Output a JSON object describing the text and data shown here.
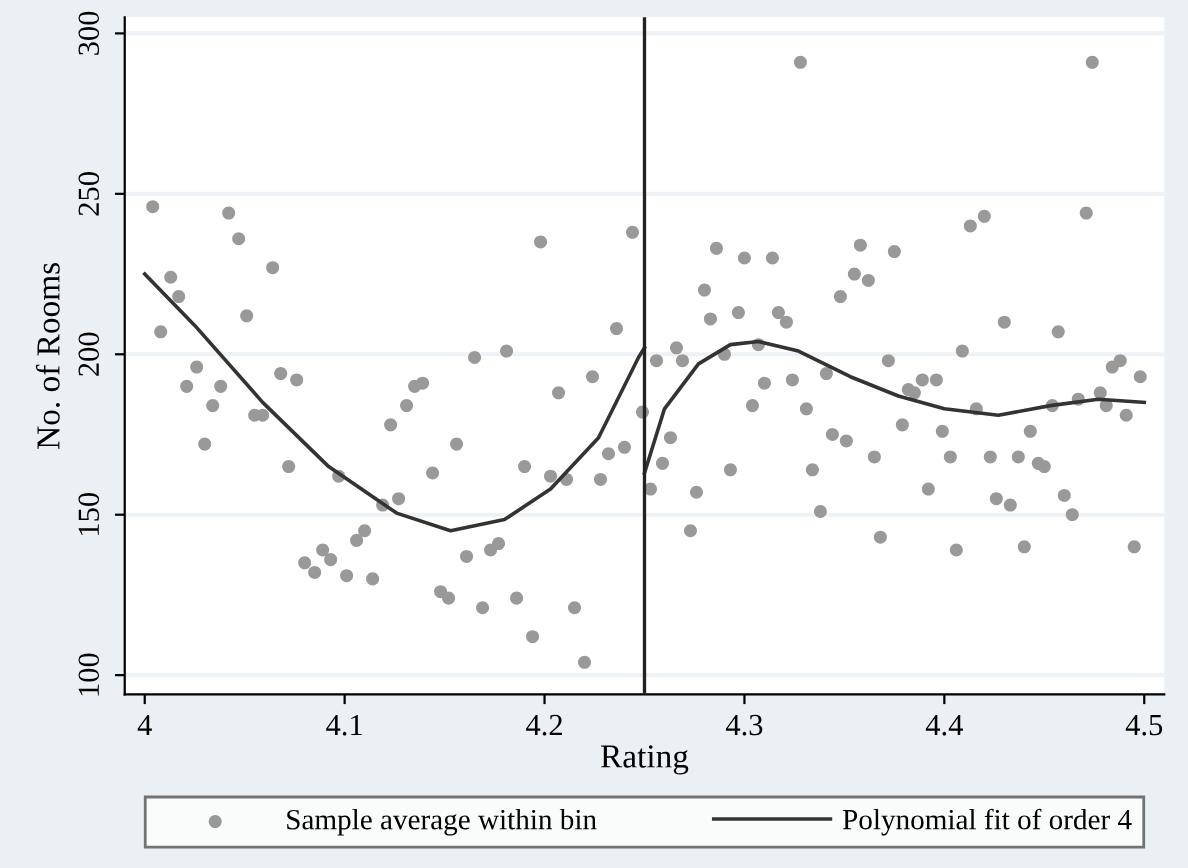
{
  "chart_data": {
    "type": "scatter",
    "xlabel": "Rating",
    "ylabel": "No. of Rooms",
    "xlim": [
      3.99,
      4.51
    ],
    "ylim": [
      94,
      305
    ],
    "xticks": [
      4,
      4.1,
      4.2,
      4.3,
      4.4,
      4.5
    ],
    "yticks": [
      100,
      150,
      200,
      250,
      300
    ],
    "grid": "y",
    "legend": "bottom",
    "marker": "circle",
    "ref_lines": [
      {
        "axis": "x",
        "value": 4.25,
        "label": null,
        "color": "#222222",
        "line_style": "solid"
      }
    ],
    "series": [
      {
        "name": "Sample average within bin",
        "color": "#999999",
        "x": [
          4.004,
          4.008,
          4.013,
          4.017,
          4.021,
          4.026,
          4.03,
          4.034,
          4.038,
          4.042,
          4.047,
          4.051,
          4.055,
          4.059,
          4.064,
          4.068,
          4.072,
          4.076,
          4.08,
          4.085,
          4.089,
          4.093,
          4.097,
          4.101,
          4.106,
          4.11,
          4.114,
          4.119,
          4.123,
          4.127,
          4.131,
          4.135,
          4.139,
          4.144,
          4.148,
          4.152,
          4.156,
          4.161,
          4.165,
          4.169,
          4.173,
          4.177,
          4.181,
          4.186,
          4.19,
          4.194,
          4.198,
          4.203,
          4.207,
          4.211,
          4.215,
          4.22,
          4.224,
          4.228,
          4.232,
          4.236,
          4.24,
          4.244,
          4.249,
          4.253,
          4.256,
          4.259,
          4.263,
          4.266,
          4.269,
          4.273,
          4.276,
          4.28,
          4.283,
          4.286,
          4.29,
          4.293,
          4.297,
          4.3,
          4.304,
          4.307,
          4.31,
          4.314,
          4.317,
          4.321,
          4.324,
          4.328,
          4.331,
          4.334,
          4.338,
          4.341,
          4.344,
          4.348,
          4.351,
          4.355,
          4.358,
          4.362,
          4.365,
          4.368,
          4.372,
          4.375,
          4.379,
          4.382,
          4.385,
          4.389,
          4.392,
          4.396,
          4.399,
          4.403,
          4.406,
          4.409,
          4.413,
          4.416,
          4.42,
          4.423,
          4.426,
          4.43,
          4.433,
          4.437,
          4.44,
          4.443,
          4.447,
          4.45,
          4.454,
          4.457,
          4.46,
          4.464,
          4.467,
          4.471,
          4.474,
          4.478,
          4.481,
          4.484,
          4.488,
          4.491,
          4.495,
          4.498
        ],
        "values": [
          246,
          207,
          224,
          218,
          190,
          196,
          172,
          184,
          190,
          244,
          236,
          212,
          181,
          181,
          227,
          194,
          165,
          192,
          135,
          132,
          139,
          136,
          162,
          131,
          142,
          145,
          130,
          153,
          178,
          155,
          184,
          190,
          191,
          163,
          126,
          124,
          172,
          137,
          199,
          121,
          139,
          141,
          201,
          124,
          165,
          112,
          235,
          162,
          188,
          161,
          121,
          104,
          193,
          161,
          169,
          208,
          171,
          238,
          182,
          158,
          198,
          166,
          174,
          202,
          198,
          145,
          157,
          220,
          211,
          233,
          200,
          164,
          213,
          230,
          184,
          203,
          191,
          230,
          213,
          210,
          192,
          291,
          183,
          164,
          151,
          194,
          175,
          218,
          173,
          225,
          234,
          223,
          168,
          143,
          198,
          232,
          178,
          189,
          188,
          192,
          158,
          192,
          176,
          168,
          139,
          201,
          240,
          183,
          243,
          168,
          155,
          210,
          153,
          168,
          140,
          176,
          166,
          165,
          184,
          207,
          156,
          150,
          186,
          244,
          291,
          188,
          184,
          196,
          198,
          181,
          140,
          193
        ]
      },
      {
        "name": "Polynomial fit of order 4",
        "type": "line",
        "color": "#333333",
        "marker": "none",
        "line_style": "solid",
        "x": [
          4.0,
          4.025,
          4.059,
          4.092,
          4.126,
          4.153,
          4.18,
          4.203,
          4.227,
          4.247,
          4.25
        ],
        "values": [
          225,
          209,
          185,
          165,
          150.5,
          145,
          148.5,
          158,
          174,
          199,
          202
        ]
      },
      {
        "type": "line",
        "color": "#333333",
        "marker": "none",
        "line_style": "solid",
        "x": [
          4.25,
          4.26,
          4.277,
          4.293,
          4.307,
          4.327,
          4.353,
          4.377,
          4.4,
          4.427,
          4.453,
          4.477,
          4.5
        ],
        "values": [
          163,
          183,
          197,
          203,
          204,
          201,
          193,
          187,
          183,
          181,
          184,
          186,
          185
        ]
      }
    ]
  }
}
